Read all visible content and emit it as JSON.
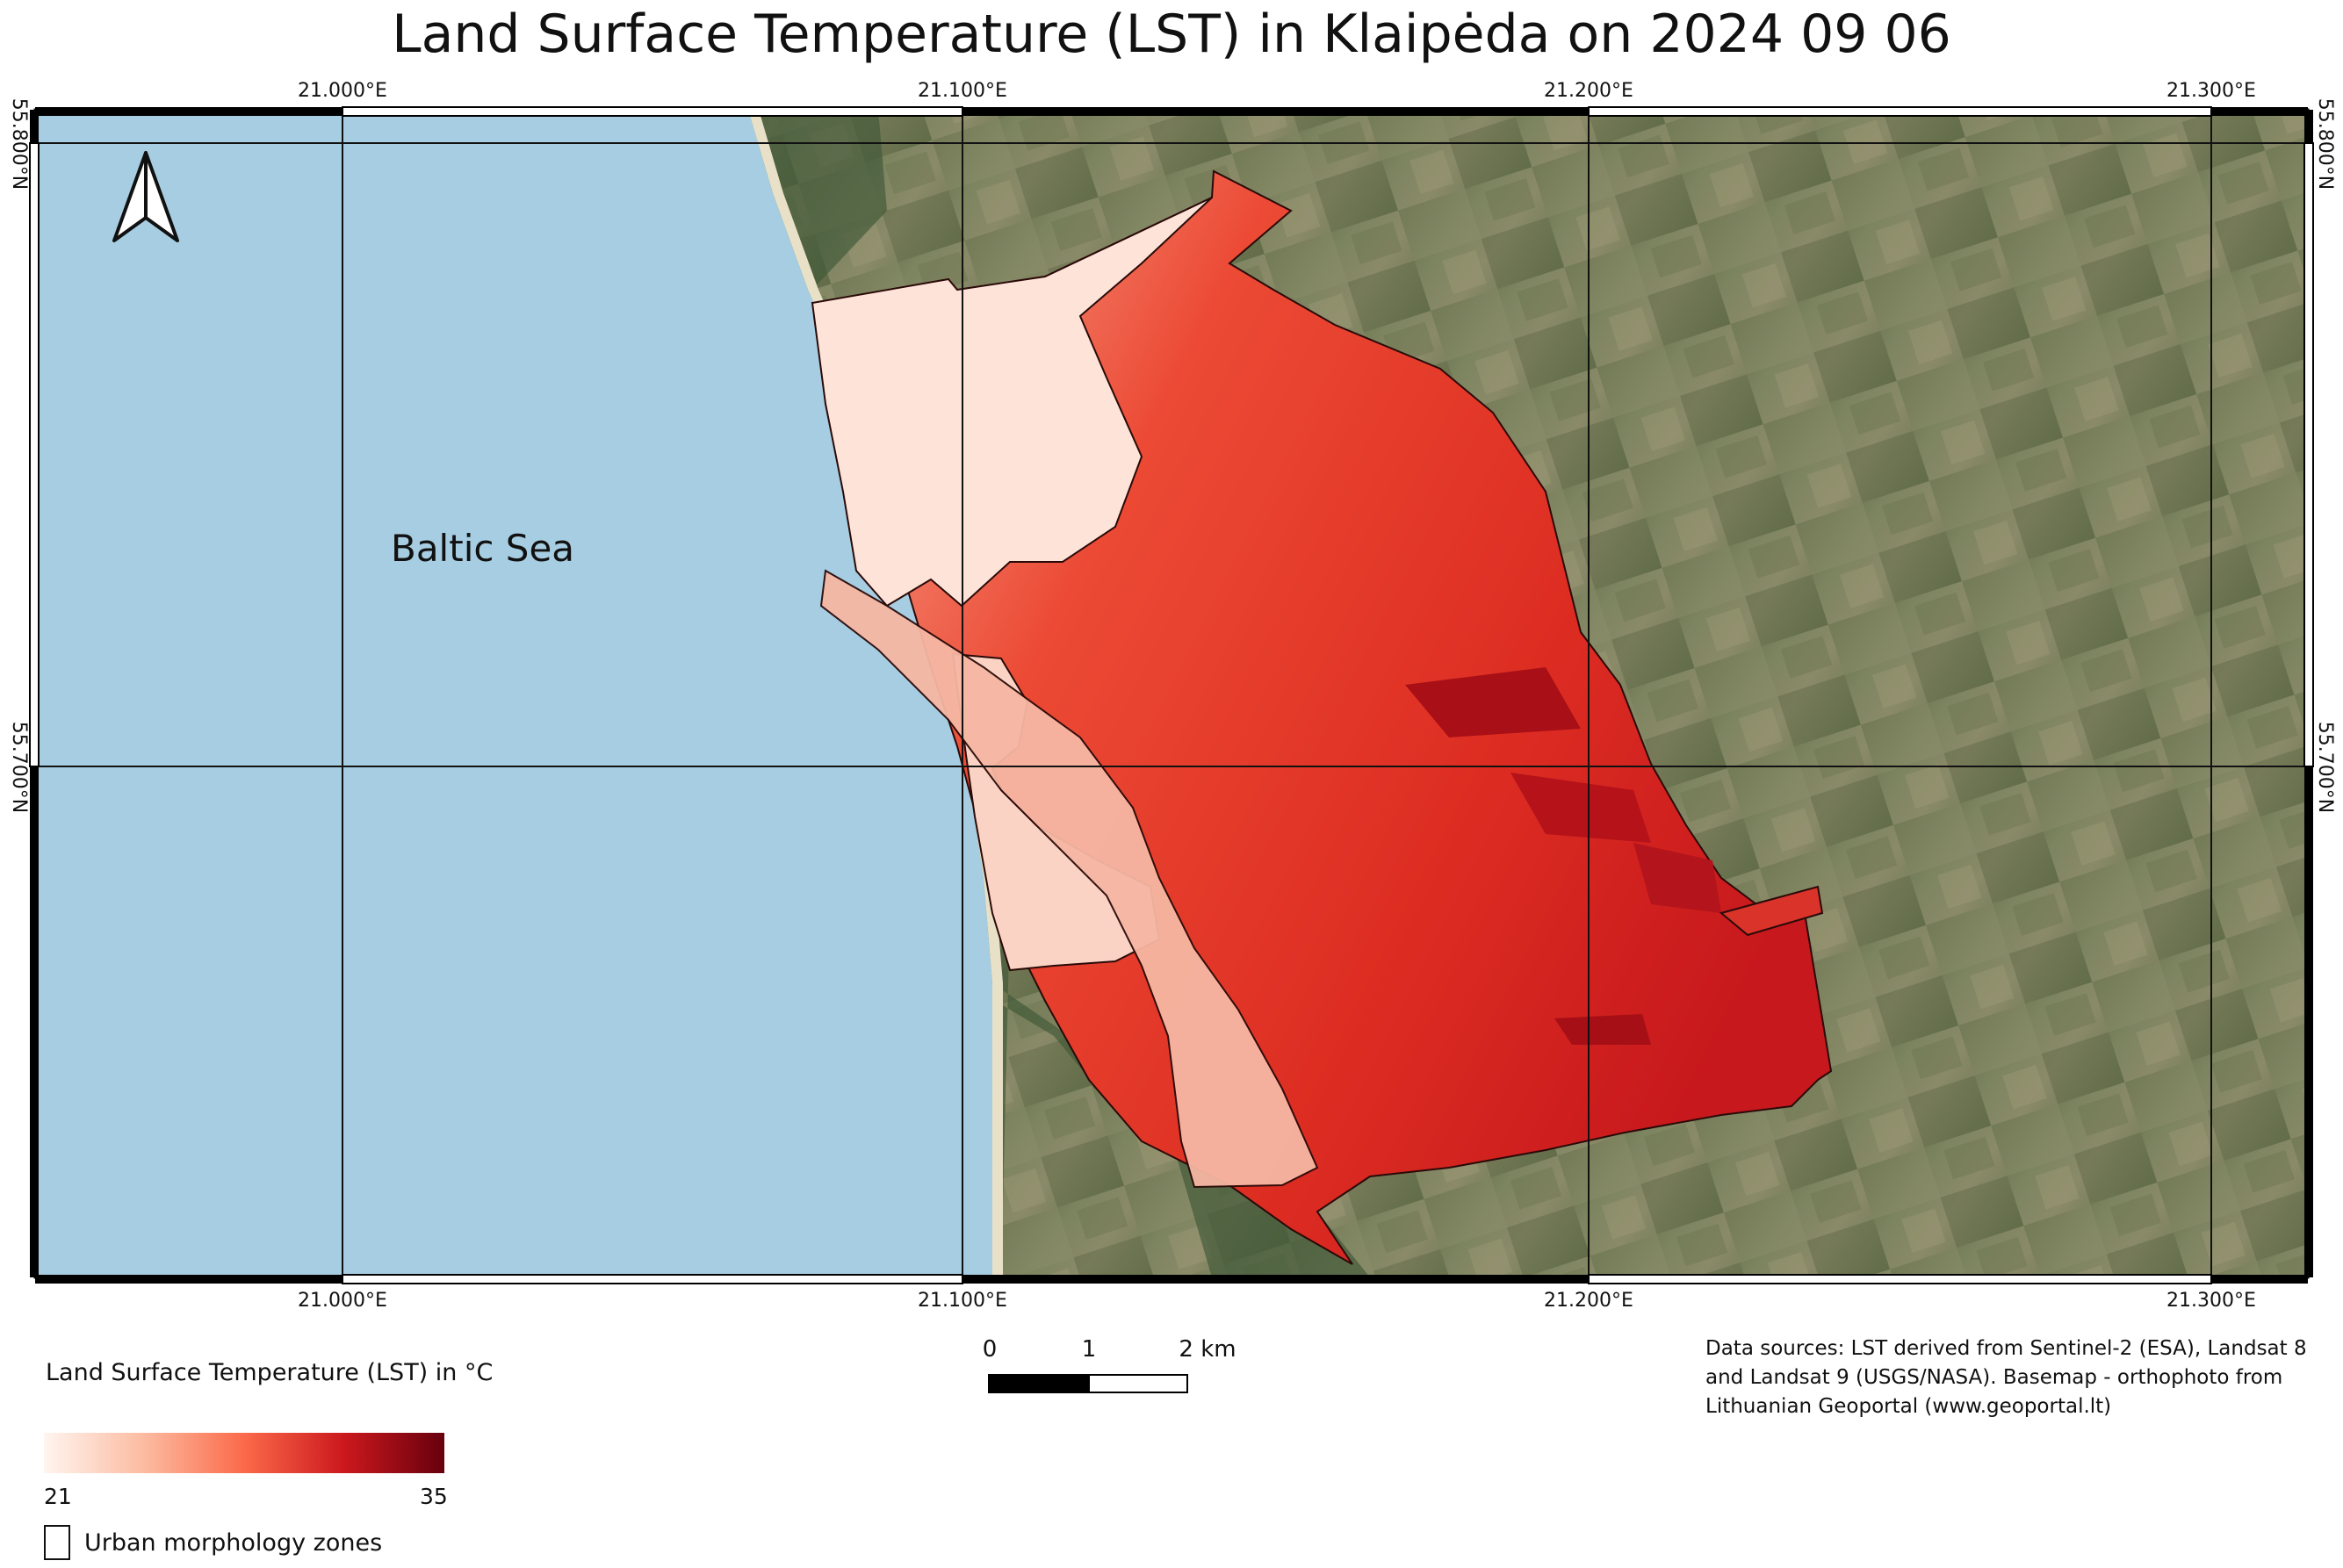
{
  "title": "Land Surface Temperature (LST) in Klaipėda on 2024 09 06",
  "grid": {
    "longitudes": [
      "21.000°E",
      "21.100°E",
      "21.200°E",
      "21.300°E"
    ],
    "latitudes": [
      "55.800°N",
      "55.700°N"
    ]
  },
  "labels": {
    "sea": "Baltic Sea"
  },
  "scale_bar": {
    "ticks": [
      "0",
      "1",
      "2 km"
    ]
  },
  "legend": {
    "title": "Land Surface Temperature (LST) in °C",
    "min": "21",
    "max": "35",
    "ramp_colors": [
      "#fff5f0",
      "#fcbba1",
      "#fb6a4a",
      "#cb181d",
      "#67000d"
    ],
    "zones_label": "Urban morphology zones"
  },
  "sources": "Data sources: LST derived from Sentinel-2 (ESA), Landsat 8 and Landsat 9 (USGS/NASA). Basemap - orthophoto from Lithuanian Geoportal (www.geoportal.lt)",
  "colors": {
    "sea": "#a6cde1",
    "land": "#6f7a55",
    "lst_low": "#fde3d8",
    "lst_high": "#c9181d"
  },
  "icons": {
    "north_arrow": "north-arrow-icon"
  }
}
